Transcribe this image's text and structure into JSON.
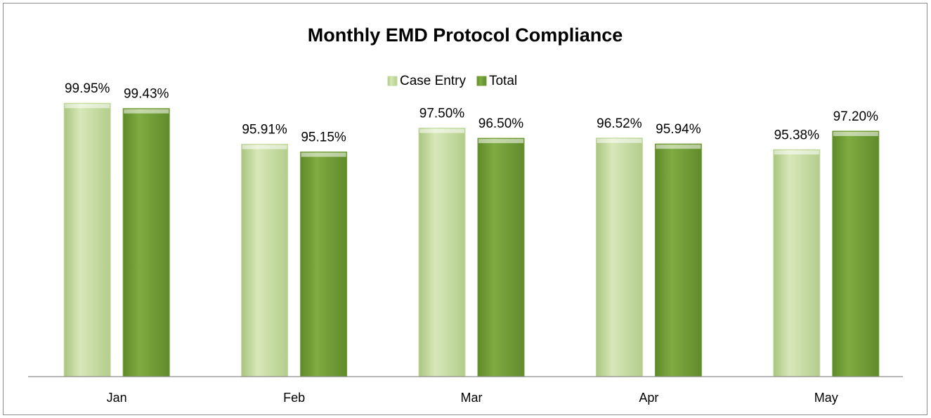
{
  "chart_data": {
    "type": "bar",
    "title": "Monthly EMD Protocol Compliance",
    "categories": [
      "Jan",
      "Feb",
      "Mar",
      "Apr",
      "May"
    ],
    "series": [
      {
        "name": "Case Entry",
        "color": "#c5dba0",
        "values": [
          99.95,
          95.91,
          97.5,
          96.52,
          95.38
        ],
        "value_labels": [
          "99.95%",
          "95.91%",
          "97.50%",
          "96.52%",
          "95.38%"
        ]
      },
      {
        "name": "Total",
        "color": "#76a03a",
        "values": [
          99.43,
          95.15,
          96.5,
          95.94,
          97.2
        ],
        "value_labels": [
          "99.43%",
          "95.15%",
          "96.50%",
          "95.94%",
          "97.20%"
        ]
      }
    ],
    "ylim": [
      73,
      101
    ],
    "legend": "top"
  }
}
